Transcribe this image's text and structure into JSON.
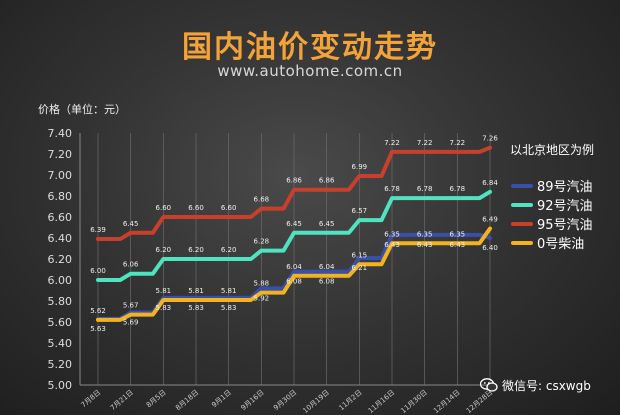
{
  "title": "国内油价变动走势",
  "site": "www.autohome.com.cn",
  "ylabel": "价格（单位：元）",
  "legend_title": "以北京地区为例",
  "watermark": "微信号: csxwgb",
  "chart_data": {
    "type": "line",
    "title": "国内油价变动走势",
    "ylabel": "价格（单位：元）",
    "xlabel": "",
    "ylim": [
      5.0,
      7.4
    ],
    "yticks": [
      "5.00",
      "5.20",
      "5.40",
      "5.60",
      "5.80",
      "6.00",
      "6.20",
      "6.40",
      "6.60",
      "6.80",
      "7.00",
      "7.20",
      "7.40"
    ],
    "categories": [
      "7月8日",
      "7月21日",
      "8月5日",
      "8月18日",
      "9月1日",
      "9月16日",
      "9月30日",
      "10月19日",
      "11月2日",
      "11月16日",
      "11月30日",
      "12月14日",
      "12月28日"
    ],
    "legend": "right",
    "grid": false,
    "series": [
      {
        "name": "89号汽油",
        "color": "#3a4fa6",
        "values": [
          5.63,
          5.69,
          5.83,
          5.83,
          5.83,
          5.92,
          6.08,
          6.08,
          6.21,
          6.43,
          6.43,
          6.43,
          6.4
        ],
        "labels": [
          "5.63",
          "5.69",
          "5.83",
          "5.83",
          "5.83",
          "5.92",
          "6.08",
          "6.08",
          "6.21",
          "6.43",
          "6.43",
          "6.43",
          "6.40"
        ],
        "label_pos": "below"
      },
      {
        "name": "92号汽油",
        "color": "#4fe3c0",
        "values": [
          6.0,
          6.06,
          6.2,
          6.2,
          6.2,
          6.28,
          6.45,
          6.45,
          6.57,
          6.78,
          6.78,
          6.78,
          6.84
        ],
        "labels": [
          "6.00",
          "6.06",
          "6.20",
          "6.20",
          "6.20",
          "6.28",
          "6.45",
          "6.45",
          "6.57",
          "6.78",
          "6.78",
          "6.78",
          "6.84"
        ],
        "label_pos": "above"
      },
      {
        "name": "95号汽油",
        "color": "#c8402c",
        "values": [
          6.39,
          6.45,
          6.6,
          6.6,
          6.6,
          6.68,
          6.86,
          6.86,
          6.99,
          7.22,
          7.22,
          7.22,
          7.26
        ],
        "labels": [
          "6.39",
          "6.45",
          "6.60",
          "6.60",
          "6.60",
          "6.68",
          "6.86",
          "6.86",
          "6.99",
          "7.22",
          "7.22",
          "7.22",
          "7.26"
        ],
        "label_pos": "above"
      },
      {
        "name": "0号柴油",
        "color": "#f2b321",
        "values": [
          5.62,
          5.67,
          5.81,
          5.81,
          5.81,
          5.88,
          6.04,
          6.04,
          6.15,
          6.35,
          6.35,
          6.35,
          6.49
        ],
        "labels": [
          "5.62",
          "5.67",
          "5.81",
          "5.81",
          "5.81",
          "5.88",
          "6.04",
          "6.04",
          "6.15",
          "6.35",
          "6.35",
          "6.35",
          "6.49"
        ],
        "label_pos": "above"
      }
    ]
  }
}
